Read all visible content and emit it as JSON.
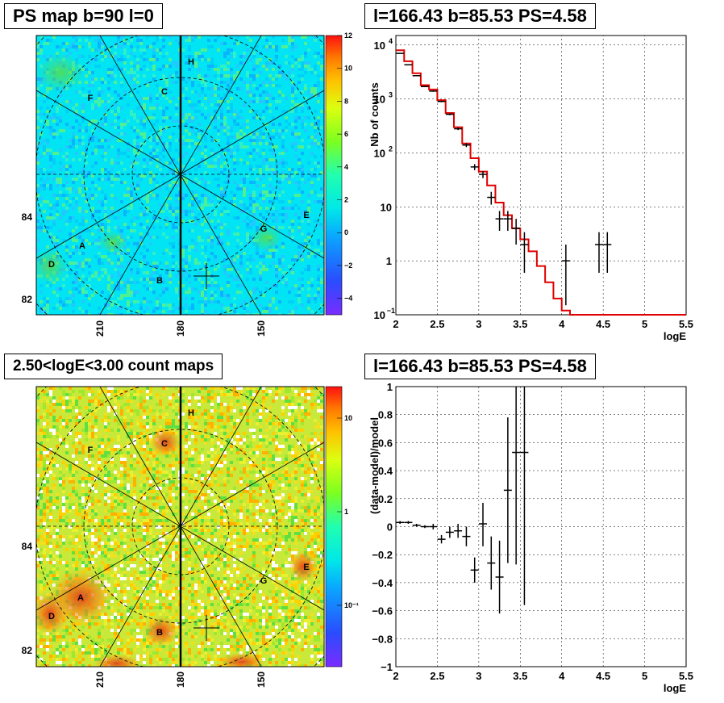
{
  "chart_data": [
    {
      "type": "heatmap",
      "title": "PS map b=90 l=0",
      "y_ticks": [
        "84",
        "82"
      ],
      "x_ticks": [
        "210",
        "180",
        "150"
      ],
      "colorbar_ticks": [
        "12",
        "10",
        "8",
        "6",
        "4",
        "2",
        "0",
        "−2",
        "−4"
      ],
      "colorbar_range": [
        -5,
        12
      ],
      "region_labels": [
        "H",
        "C",
        "F",
        "E",
        "G",
        "A",
        "D",
        "B"
      ]
    },
    {
      "type": "line",
      "title": "l=166.43 b=85.53 PS=4.58",
      "xlabel": "logE",
      "ylabel": "Nb of counts",
      "xlim": [
        2,
        5.5
      ],
      "ylim": [
        0.1,
        15000
      ],
      "log_y": true,
      "grid": true,
      "x_ticks": [
        "2",
        "2.5",
        "3",
        "3.5",
        "4",
        "4.5",
        "5",
        "5.5"
      ],
      "y_ticks": [
        "10",
        "1",
        "10⁻¹"
      ],
      "y_ticks_pow": [
        "10",
        "10",
        "10",
        "10"
      ],
      "y_ticks_exp": [
        "4",
        "3",
        "2",
        ""
      ],
      "model": {
        "edges": [
          2.0,
          2.1,
          2.2,
          2.3,
          2.4,
          2.5,
          2.6,
          2.7,
          2.8,
          2.9,
          3.0,
          3.1,
          3.2,
          3.3,
          3.4,
          3.5,
          3.6,
          3.7,
          3.8,
          3.9,
          4.0,
          4.1,
          4.2,
          4.3,
          4.4,
          4.5,
          4.6,
          4.7,
          4.8,
          4.9,
          5.0,
          5.1,
          5.2,
          5.3,
          5.4,
          5.5
        ],
        "values": [
          8000,
          5000,
          3000,
          1800,
          1500,
          950,
          550,
          300,
          150,
          80,
          45,
          25,
          12,
          7,
          4,
          2.5,
          1.5,
          0.8,
          0.4,
          0.2,
          0.12,
          0.1,
          0.1,
          0.1,
          0.1,
          0.1,
          0.1,
          0.1,
          0.1,
          0.1,
          0.1,
          0.1,
          0.1,
          0.1,
          0.1
        ]
      },
      "data": [
        {
          "x": 2.05,
          "y": 7000,
          "lo": 6900,
          "hi": 7100
        },
        {
          "x": 2.15,
          "y": 4300,
          "lo": 4250,
          "hi": 4350
        },
        {
          "x": 2.25,
          "y": 2700,
          "lo": 2650,
          "hi": 2750
        },
        {
          "x": 2.35,
          "y": 1700,
          "lo": 1660,
          "hi": 1740
        },
        {
          "x": 2.45,
          "y": 1400,
          "lo": 1360,
          "hi": 1440
        },
        {
          "x": 2.55,
          "y": 900,
          "lo": 870,
          "hi": 930
        },
        {
          "x": 2.65,
          "y": 520,
          "lo": 500,
          "hi": 540
        },
        {
          "x": 2.75,
          "y": 280,
          "lo": 265,
          "hi": 295
        },
        {
          "x": 2.85,
          "y": 140,
          "lo": 128,
          "hi": 152
        },
        {
          "x": 2.95,
          "y": 55,
          "lo": 48,
          "hi": 62
        },
        {
          "x": 3.05,
          "y": 40,
          "lo": 34,
          "hi": 46
        },
        {
          "x": 3.15,
          "y": 15,
          "lo": 11,
          "hi": 19
        },
        {
          "x": 3.25,
          "y": 6,
          "lo": 3.6,
          "hi": 8.4
        },
        {
          "x": 3.35,
          "y": 6,
          "lo": 3.6,
          "hi": 8.4
        },
        {
          "x": 3.45,
          "y": 4,
          "lo": 2,
          "hi": 6
        },
        {
          "x": 3.55,
          "y": 2,
          "lo": 0.6,
          "hi": 3.4
        },
        {
          "x": 4.05,
          "y": 1,
          "lo": 0.15,
          "hi": 2
        },
        {
          "x": 4.45,
          "y": 2,
          "lo": 0.6,
          "hi": 3.4
        },
        {
          "x": 4.55,
          "y": 2,
          "lo": 0.6,
          "hi": 3.4
        }
      ]
    },
    {
      "type": "heatmap",
      "title": "2.50<logE<3.00 count maps",
      "y_ticks": [
        "84",
        "82"
      ],
      "x_ticks": [
        "210",
        "180",
        "150"
      ],
      "colorbar_ticks": [
        "10",
        "1",
        "10⁻¹"
      ],
      "colorbar_log": true,
      "region_labels": [
        "H",
        "C",
        "F",
        "E",
        "G",
        "A",
        "D",
        "B"
      ]
    },
    {
      "type": "scatter",
      "title": "l=166.43 b=85.53 PS=4.58",
      "xlabel": "logE",
      "ylabel": "(data-model)/model",
      "xlim": [
        2,
        5.5
      ],
      "ylim": [
        -1,
        1
      ],
      "grid": true,
      "x_ticks": [
        "2",
        "2.5",
        "3",
        "3.5",
        "4",
        "4.5",
        "5",
        "5.5"
      ],
      "y_ticks": [
        "1",
        "0.8",
        "0.6",
        "0.4",
        "0.2",
        "0",
        "−0.2",
        "−0.4",
        "−0.6",
        "−0.8",
        "−1"
      ],
      "data": [
        {
          "x": 2.05,
          "y": 0.03,
          "lo": 0.02,
          "hi": 0.04
        },
        {
          "x": 2.15,
          "y": 0.03,
          "lo": 0.02,
          "hi": 0.04
        },
        {
          "x": 2.25,
          "y": 0.01,
          "lo": 0.0,
          "hi": 0.02
        },
        {
          "x": 2.35,
          "y": 0.0,
          "lo": -0.01,
          "hi": 0.01
        },
        {
          "x": 2.45,
          "y": 0.0,
          "lo": -0.02,
          "hi": 0.02
        },
        {
          "x": 2.55,
          "y": -0.09,
          "lo": -0.12,
          "hi": -0.06
        },
        {
          "x": 2.65,
          "y": -0.04,
          "lo": -0.08,
          "hi": 0.0
        },
        {
          "x": 2.75,
          "y": -0.03,
          "lo": -0.08,
          "hi": 0.02
        },
        {
          "x": 2.85,
          "y": -0.07,
          "lo": -0.14,
          "hi": 0.0
        },
        {
          "x": 2.95,
          "y": -0.31,
          "lo": -0.4,
          "hi": -0.22
        },
        {
          "x": 3.05,
          "y": 0.02,
          "lo": -0.14,
          "hi": 0.17
        },
        {
          "x": 3.15,
          "y": -0.26,
          "lo": -0.45,
          "hi": -0.07
        },
        {
          "x": 3.25,
          "y": -0.36,
          "lo": -0.62,
          "hi": -0.1
        },
        {
          "x": 3.35,
          "y": 0.26,
          "lo": -0.26,
          "hi": 0.78
        },
        {
          "x": 3.45,
          "y": 0.53,
          "lo": -0.27,
          "hi": 1.0
        },
        {
          "x": 3.55,
          "y": 0.53,
          "lo": -0.56,
          "hi": 1.0
        }
      ]
    }
  ]
}
